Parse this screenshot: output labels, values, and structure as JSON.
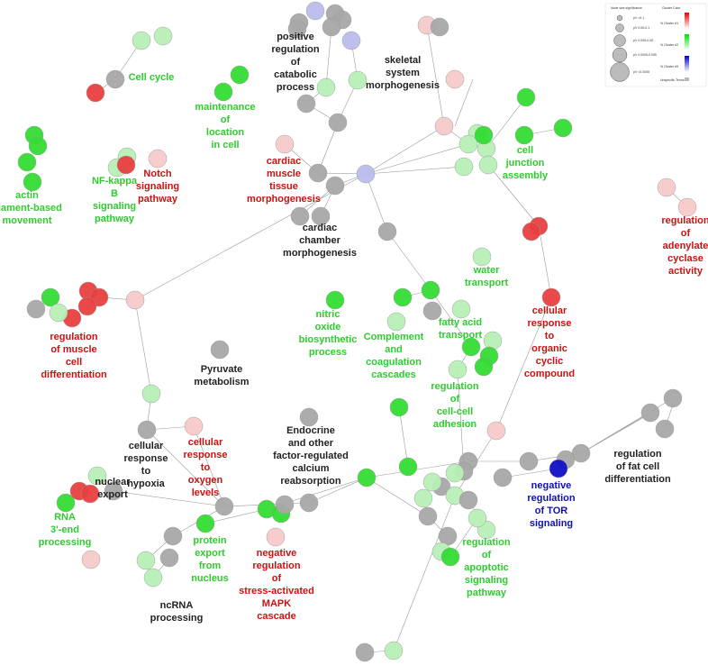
{
  "legend": {
    "size_title": "Node size significance",
    "size_items": [
      "pV <0.1",
      "pV 0.05-0.1",
      "pV 0.005-0.05",
      "pV 0.0005-0.005",
      "pV <0.0005"
    ],
    "color_title": "Cluster Color",
    "color_items": [
      "% Cluster #1",
      "% Cluster #2",
      "% Cluster #9",
      "Unspecific Terms"
    ]
  },
  "labels": [
    [
      "positive",
      "regulation",
      "of",
      "catabolic",
      "process"
    ],
    [
      "skeletal",
      "system",
      "morphogenesis"
    ],
    [
      "Cell cycle"
    ],
    [
      "maintenance",
      "of",
      "location",
      "in cell"
    ],
    [
      "actin",
      "filament-based",
      "movement"
    ],
    [
      "NF-kappa",
      "B",
      "signaling",
      "pathway"
    ],
    [
      "Notch",
      "signaling",
      "pathway"
    ],
    [
      "cardiac",
      "muscle",
      "tissue",
      "morphogenesis"
    ],
    [
      "cell",
      "junction",
      "assembly"
    ],
    [
      "cardiac",
      "chamber",
      "morphogenesis"
    ],
    [
      "regulation",
      "of",
      "adenylate",
      "cyclase",
      "activity"
    ],
    [
      "water",
      "transport"
    ],
    [
      "cellular",
      "response",
      "to",
      "organic",
      "cyclic",
      "compound"
    ],
    [
      "nitric",
      "oxide",
      "biosynthetic",
      "process"
    ],
    [
      "fatty acid",
      "transport"
    ],
    [
      "Complement",
      "and",
      "coagulation",
      "cascades"
    ],
    [
      "regulation",
      "of muscle",
      "cell",
      "differentiation"
    ],
    [
      "Pyruvate",
      "metabolism"
    ],
    [
      "regulation",
      "of",
      "cell-cell",
      "adhesion"
    ],
    [
      "cellular",
      "response",
      "to",
      "hypoxia"
    ],
    [
      "cellular",
      "response",
      "to",
      "oxygen",
      "levels"
    ],
    [
      "Endocrine",
      "and other",
      "factor-regulated",
      "calcium",
      "reabsorption"
    ],
    [
      "regulation",
      "of fat cell",
      "differentiation"
    ],
    [
      "negative",
      "regulation",
      "of TOR",
      "signaling"
    ],
    [
      "nuclear",
      "export"
    ],
    [
      "RNA",
      "3'-end",
      "processing"
    ],
    [
      "protein",
      "export",
      "from",
      "nucleus"
    ],
    [
      "negative",
      "regulation",
      "of",
      "stress-activated",
      "MAPK",
      "cascade"
    ],
    [
      "regulation",
      "of",
      "apoptotic",
      "signaling",
      "pathway"
    ],
    [
      "ncRNA",
      "processing"
    ]
  ]
}
